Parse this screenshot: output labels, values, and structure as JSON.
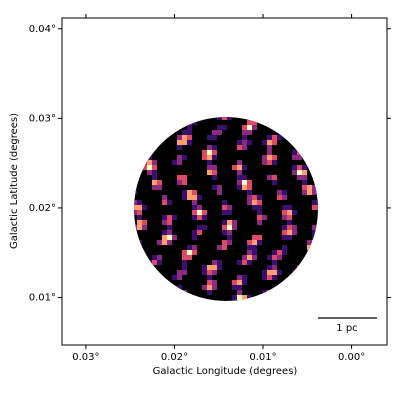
{
  "chart_data": {
    "type": "image",
    "x_label": "Galactic Longitude (degrees)",
    "y_label": "Galactic Latitude (degrees)",
    "xlim": [
      0.0327,
      -0.004
    ],
    "ylim": [
      0.0047,
      0.0412
    ],
    "xticks": [
      {
        "value": 0.03,
        "label": "0.03°"
      },
      {
        "value": 0.02,
        "label": "0.02°"
      },
      {
        "value": 0.01,
        "label": "0.01°"
      },
      {
        "value": 0.0,
        "label": "0.00°"
      }
    ],
    "yticks": [
      {
        "value": 0.01,
        "label": "0.01°"
      },
      {
        "value": 0.02,
        "label": "0.02°"
      },
      {
        "value": 0.03,
        "label": "0.03°"
      },
      {
        "value": 0.04,
        "label": "0.04°"
      }
    ],
    "scale_bar_label": "1 pc"
  }
}
